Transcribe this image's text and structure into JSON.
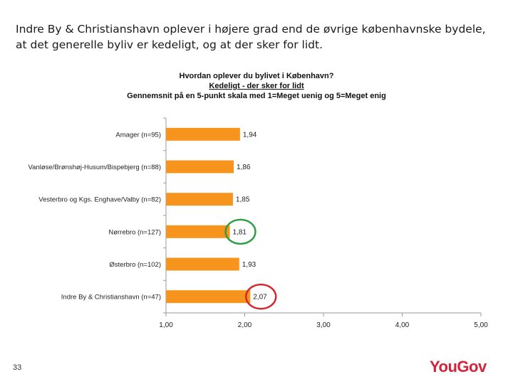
{
  "slide": {
    "title": "Indre By & Christianshavn oplever i højere grad end de øvrige københavnske bydele, at det generelle byliv er kedeligt, og at der sker for lidt.",
    "page_number": "33",
    "logo_text": "YouGov"
  },
  "chart_data": {
    "type": "bar",
    "orientation": "horizontal",
    "title": "Hvordan oplever du bylivet i København?",
    "subtitle": "Kedeligt - der sker for lidt",
    "description": "Gennemsnit på en 5-punkt skala med 1=Meget uenig og 5=Meget enig",
    "categories": [
      "Amager (n=95)",
      "Vanløse/Brønshøj-Husum/Bispebjerg (n=88)",
      "Vesterbro og Kgs. Enghave/Valby (n=82)",
      "Nørrebro (n=127)",
      "Østerbro (n=102)",
      "Indre By & Christianshavn (n=47)"
    ],
    "values": [
      1.94,
      1.86,
      1.85,
      1.81,
      1.93,
      2.07
    ],
    "value_labels": [
      "1,94",
      "1,86",
      "1,85",
      "1,81",
      "1,93",
      "2,07"
    ],
    "xlim": [
      1,
      5
    ],
    "x_ticks": [
      1,
      2,
      3,
      4,
      5
    ],
    "x_tick_labels": [
      "1,00",
      "2,00",
      "3,00",
      "4,00",
      "5,00"
    ],
    "bar_color": "#f7941d",
    "grid": false,
    "highlights": [
      {
        "category_index": 3,
        "color": "#2e9e44"
      },
      {
        "category_index": 5,
        "color": "#d7262d"
      }
    ]
  }
}
